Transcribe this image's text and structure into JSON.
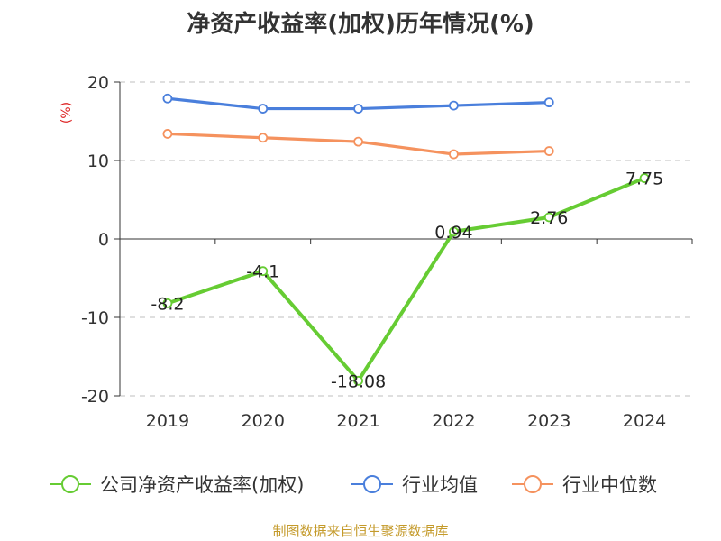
{
  "chart_data": {
    "type": "line",
    "title": "净资产收益率(加权)历年情况(%)",
    "ylabel": "(%)",
    "categories": [
      "2019",
      "2020",
      "2021",
      "2022",
      "2023",
      "2024"
    ],
    "ylim": [
      -20,
      20
    ],
    "yticks": [
      20,
      10,
      0,
      -10,
      -20
    ],
    "grid": true,
    "legend_position": "bottom",
    "series": [
      {
        "name": "公司净资产收益率(加权)",
        "color": "#66cc33",
        "values": [
          -8.2,
          -4.1,
          -18.08,
          0.94,
          2.76,
          7.75
        ],
        "labels": [
          "-8.2",
          "-4.1",
          "-18.08",
          "0.94",
          "2.76",
          "7.75"
        ]
      },
      {
        "name": "行业均值",
        "color": "#4a7fdc",
        "values": [
          17.9,
          16.6,
          16.6,
          17.0,
          17.4,
          null
        ]
      },
      {
        "name": "行业中位数",
        "color": "#f5925e",
        "values": [
          13.4,
          12.9,
          12.4,
          10.8,
          11.2,
          null
        ]
      }
    ]
  },
  "source_note": "制图数据来自恒生聚源数据库"
}
